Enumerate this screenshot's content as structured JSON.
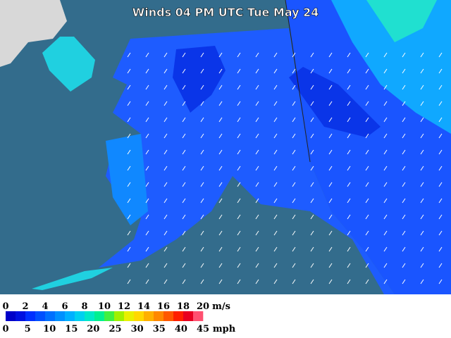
{
  "title": "Winds 04 PM UTC Tue May 24",
  "legend": {
    "ms_ticks": [
      0,
      2,
      4,
      6,
      8,
      10,
      12,
      14,
      16,
      18,
      20
    ],
    "ms_unit": "m/s",
    "mph_ticks": [
      0,
      5,
      10,
      15,
      20,
      25,
      30,
      35,
      40,
      45
    ],
    "mph_unit": "mph",
    "colors": [
      "#0000c8",
      "#0010e0",
      "#0030ff",
      "#0050ff",
      "#0070ff",
      "#0090ff",
      "#00b0ff",
      "#00d0f0",
      "#00e8c8",
      "#00f090",
      "#40f040",
      "#a0f000",
      "#e8f000",
      "#ffd800",
      "#ffb000",
      "#ff8800",
      "#ff5800",
      "#ff2000",
      "#e80020",
      "#ff5070"
    ]
  }
}
